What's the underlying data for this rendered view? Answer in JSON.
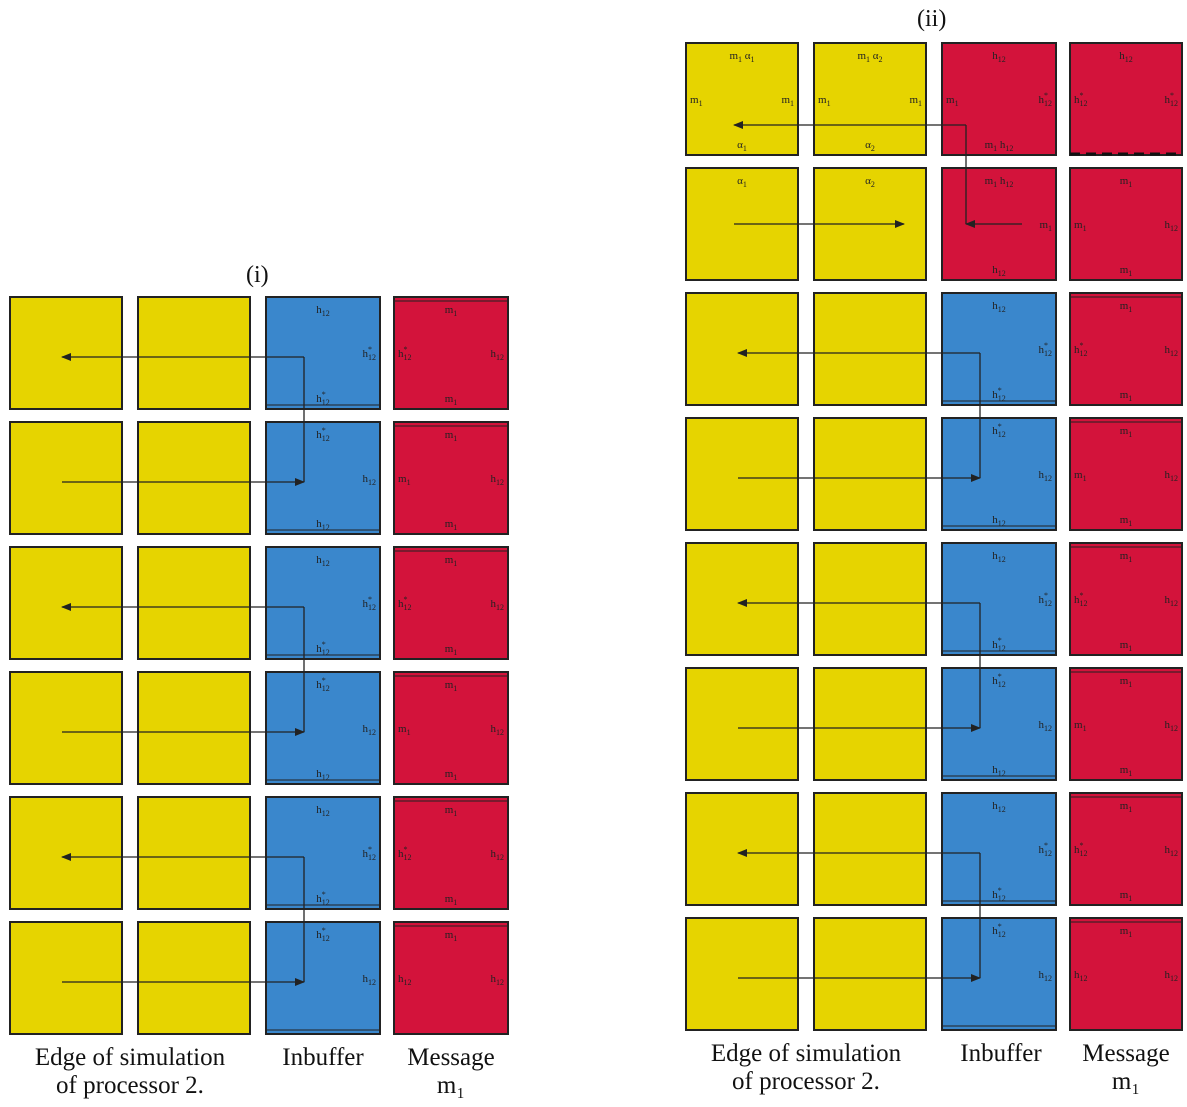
{
  "panels": [
    {
      "id": "panel-i",
      "title": "(i)",
      "captions": {
        "edge": [
          "Edge of simulation",
          "of processor 2."
        ],
        "inbuffer": [
          "Inbuffer"
        ],
        "message": [
          "Message",
          "m₁"
        ]
      },
      "rows": [
        {
          "blue": {
            "top": "h12",
            "right": "h*12",
            "bottom": "h*12"
          },
          "red": {
            "top": "m1",
            "left": "h*12",
            "right": "h12",
            "bottom": "m1"
          },
          "arrow": "left"
        },
        {
          "blue": {
            "top": "h*12",
            "right": "h12",
            "bottom": "h12"
          },
          "red": {
            "top": "m1",
            "left": "m1",
            "right": "h12",
            "bottom": "m1"
          },
          "arrow": "right"
        },
        {
          "blue": {
            "top": "h12",
            "right": "h*12",
            "bottom": "h*12"
          },
          "red": {
            "top": "m1",
            "left": "h*12",
            "right": "h12",
            "bottom": "m1"
          },
          "arrow": "left"
        },
        {
          "blue": {
            "top": "h*12",
            "right": "h12",
            "bottom": "h12"
          },
          "red": {
            "top": "m1",
            "left": "m1",
            "right": "h12",
            "bottom": "m1"
          },
          "arrow": "right"
        },
        {
          "blue": {
            "top": "h12",
            "right": "h*12",
            "bottom": "h*12"
          },
          "red": {
            "top": "m1",
            "left": "h*12",
            "right": "h12",
            "bottom": "m1"
          },
          "arrow": "left"
        },
        {
          "blue": {
            "top": "h*12",
            "right": "h12",
            "bottom": ""
          },
          "red": {
            "top": "m1",
            "left": "h12",
            "right": "h12",
            "bottom": ""
          },
          "arrow": "right"
        }
      ]
    },
    {
      "id": "panel-ii",
      "title": "(ii)",
      "captions": {
        "edge": [
          "Edge of simulation",
          "of processor 2."
        ],
        "inbuffer": [
          "Inbuffer"
        ],
        "message": [
          "Message",
          "m₁"
        ]
      },
      "top_rows": [
        {
          "yellow1": {
            "top": "m1 α1",
            "left": "m1",
            "right": "m1",
            "bottom": "α1"
          },
          "yellow2": {
            "top": "m1 α2",
            "left": "m1",
            "right": "m1",
            "bottom": "α2"
          },
          "red3": {
            "top": "h12",
            "left": "m1",
            "right": "h*12",
            "bottom": "m1 h12"
          },
          "red4": {
            "top": "h12",
            "left": "h*12",
            "right": "h*12",
            "bottom": ""
          }
        },
        {
          "yellow1": {
            "top": "α1",
            "left": "",
            "right": "",
            "bottom": ""
          },
          "yellow2": {
            "top": "α2",
            "left": "",
            "right": "",
            "bottom": ""
          },
          "red3": {
            "top": "m1 h12",
            "left": "",
            "right": "m1",
            "bottom": "h12"
          },
          "red4": {
            "top": "m1",
            "left": "m1",
            "right": "h12",
            "bottom": "m1"
          }
        }
      ],
      "rows": [
        {
          "blue": {
            "top": "h12",
            "right": "h*12",
            "bottom": "h*12"
          },
          "red": {
            "top": "m1",
            "left": "h*12",
            "right": "h12",
            "bottom": "m1"
          },
          "arrow": "left"
        },
        {
          "blue": {
            "top": "h*12",
            "right": "h12",
            "bottom": "h12"
          },
          "red": {
            "top": "m1",
            "left": "m1",
            "right": "h12",
            "bottom": "m1"
          },
          "arrow": "right"
        },
        {
          "blue": {
            "top": "h12",
            "right": "h*12",
            "bottom": "h*12"
          },
          "red": {
            "top": "m1",
            "left": "h*12",
            "right": "h12",
            "bottom": "m1"
          },
          "arrow": "left"
        },
        {
          "blue": {
            "top": "h*12",
            "right": "h12",
            "bottom": "h12"
          },
          "red": {
            "top": "m1",
            "left": "m1",
            "right": "h12",
            "bottom": "m1"
          },
          "arrow": "right"
        },
        {
          "blue": {
            "top": "h12",
            "right": "h*12",
            "bottom": "h*12"
          },
          "red": {
            "top": "m1",
            "left": "h*12",
            "right": "h12",
            "bottom": "m1"
          },
          "arrow": "left"
        },
        {
          "blue": {
            "top": "h*12",
            "right": "h12",
            "bottom": ""
          },
          "red": {
            "top": "m1",
            "left": "h12",
            "right": "h12",
            "bottom": ""
          },
          "arrow": "right"
        }
      ]
    }
  ],
  "colors": {
    "yellow": "#E6D400",
    "blue": "#3A87CC",
    "red": "#D3133B",
    "stroke": "#222222"
  }
}
